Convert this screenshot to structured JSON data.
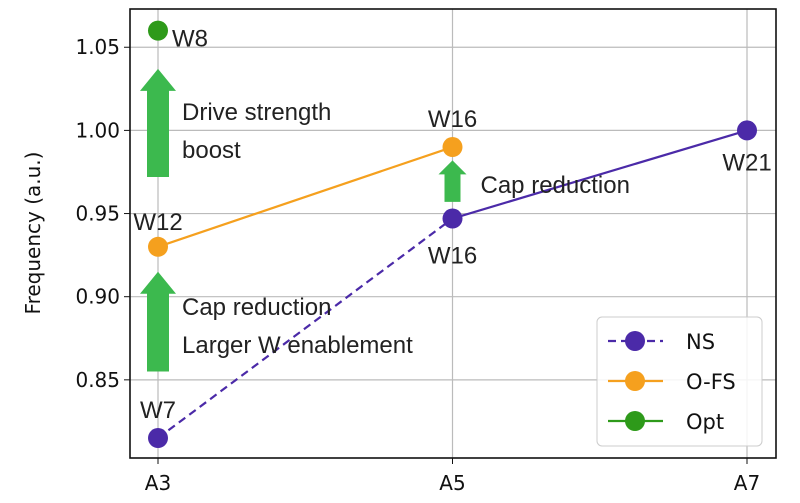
{
  "chart_data": {
    "type": "line",
    "categories": [
      "A3",
      "A5",
      "A7"
    ],
    "ylabel": "Frequency (a.u.)",
    "xlabel": "",
    "ylim": [
      0.803,
      1.073
    ],
    "yticks": [
      0.85,
      0.9,
      0.95,
      1.0,
      1.05
    ],
    "ytick_labels": [
      "0.85",
      "0.90",
      "0.95",
      "1.00",
      "1.05"
    ],
    "grid": true,
    "legend_position": "bottom-right",
    "series": [
      {
        "name": "NS",
        "color": "#4b2aa8",
        "values": [
          0.815,
          0.947,
          1.0
        ],
        "dashed_segments": [
          0
        ]
      },
      {
        "name": "O-FS",
        "color": "#f5a01e",
        "values": [
          0.93,
          0.99,
          null
        ]
      },
      {
        "name": "Opt",
        "color": "#2e9a1a",
        "values": [
          1.06,
          null,
          null
        ]
      }
    ],
    "point_labels": [
      {
        "text": "W7",
        "category": "A3",
        "series": "NS"
      },
      {
        "text": "W16",
        "category": "A5",
        "series": "NS"
      },
      {
        "text": "W21",
        "category": "A7",
        "series": "NS"
      },
      {
        "text": "W12",
        "category": "A3",
        "series": "O-FS"
      },
      {
        "text": "W16",
        "category": "A5",
        "series": "O-FS"
      },
      {
        "text": "W8",
        "category": "A3",
        "series": "Opt"
      }
    ],
    "annotations": [
      {
        "lines": [
          "Cap reduction",
          "Larger W enablement"
        ],
        "category": "A3",
        "from": 0.855,
        "to": 0.915
      },
      {
        "lines": [
          "Drive strength",
          "boost"
        ],
        "category": "A3",
        "from": 0.972,
        "to": 1.037
      },
      {
        "lines": [
          "Cap reduction"
        ],
        "category": "A5",
        "from": 0.957,
        "to": 0.982
      }
    ],
    "arrow_color": "#3cb94e"
  }
}
